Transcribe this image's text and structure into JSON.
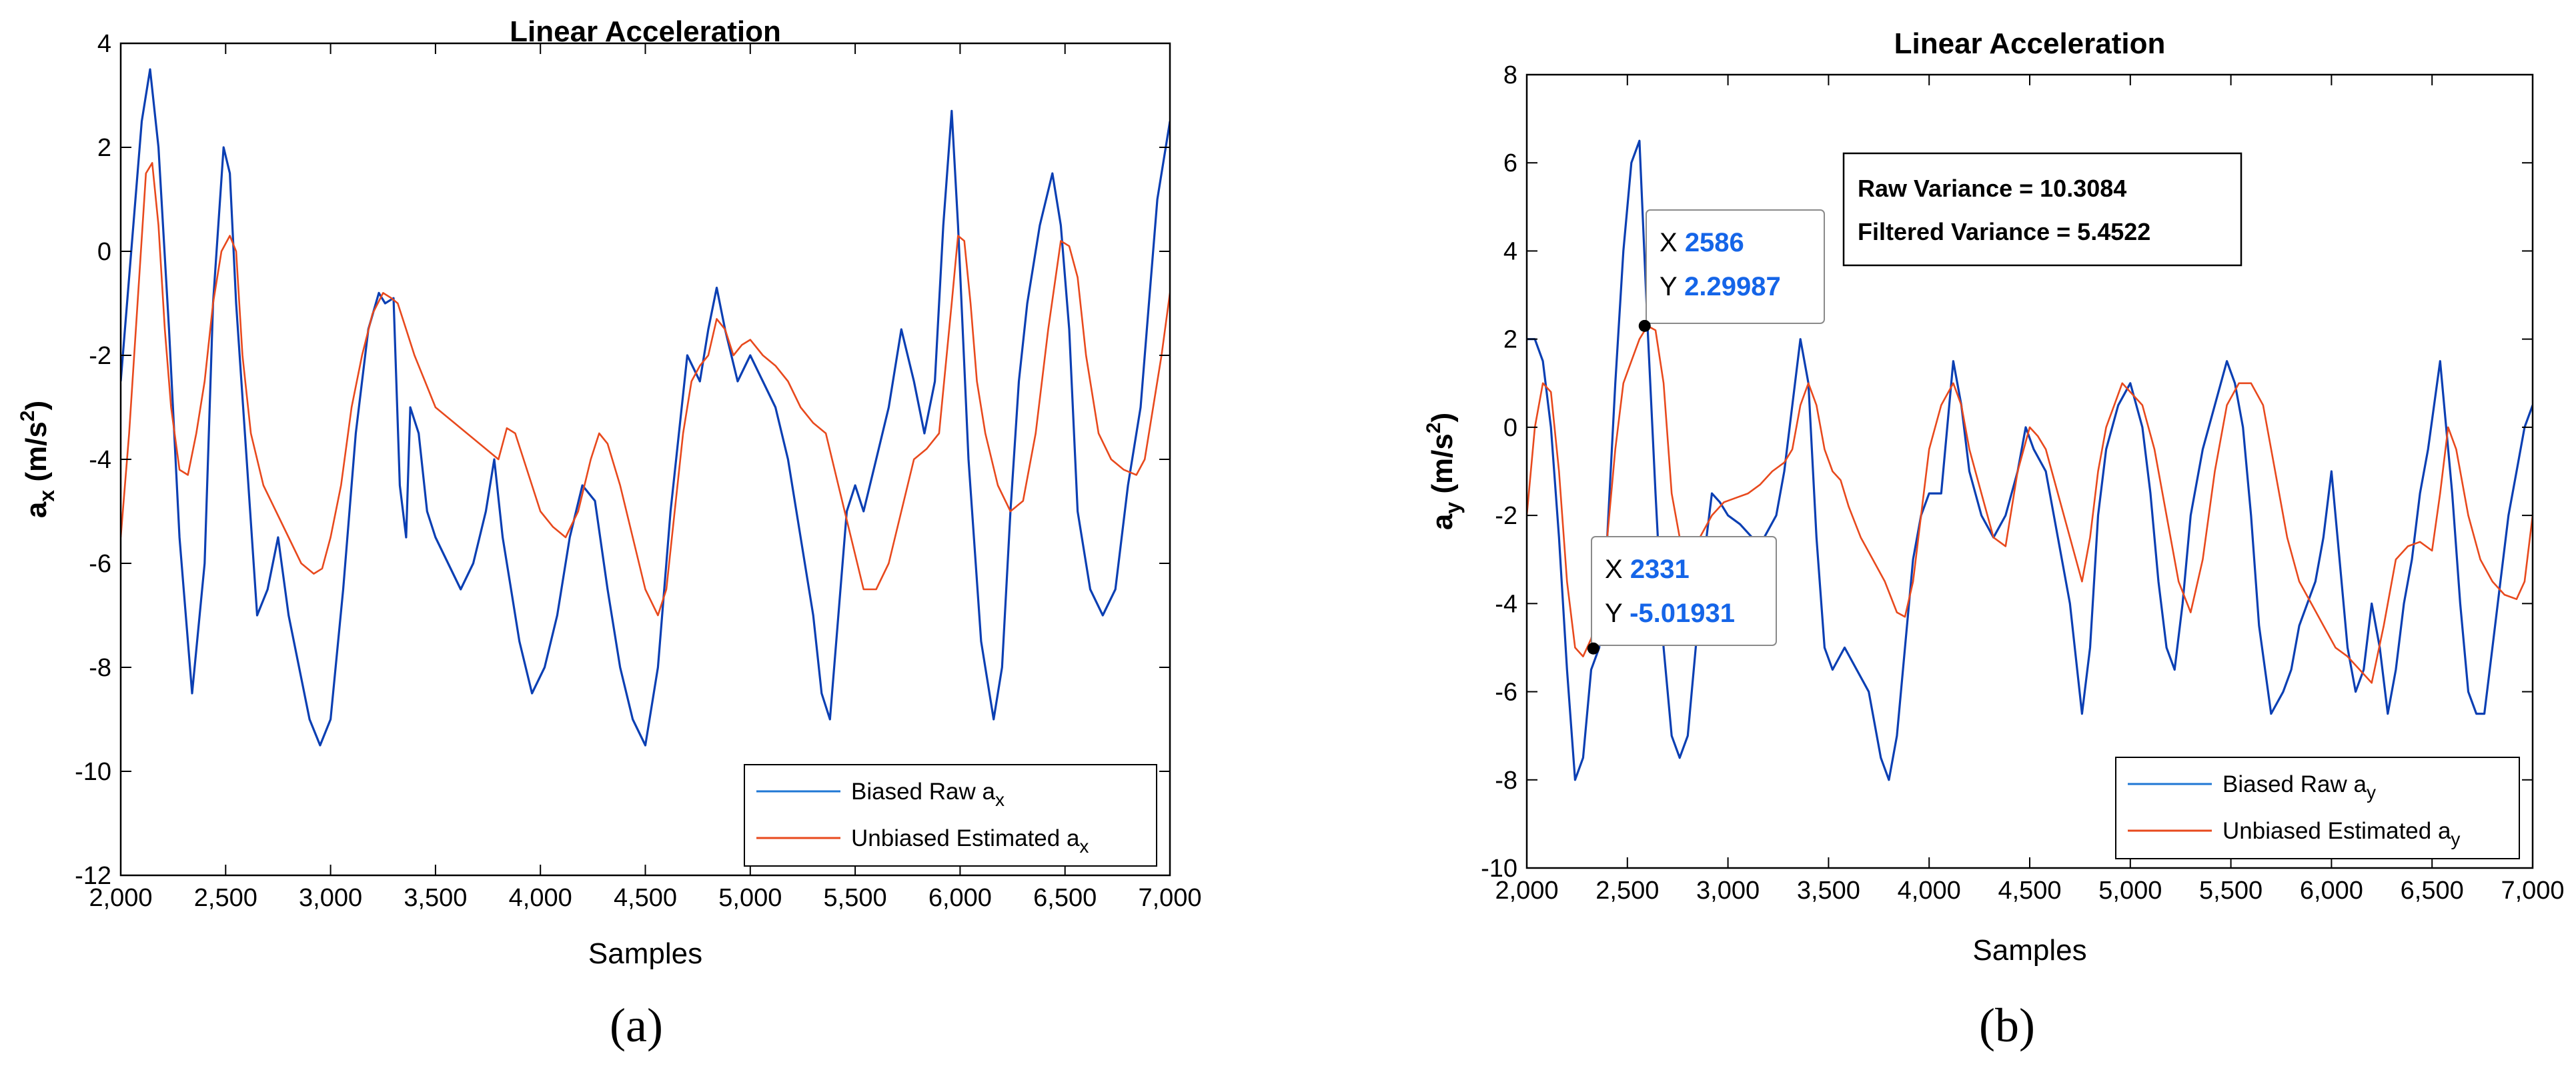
{
  "colors": {
    "raw": "#0b3fb3",
    "estimated": "#e8491d",
    "legend_raw": "#1f77d4",
    "tip_value": "#1565e8"
  },
  "chart_data": [
    {
      "type": "line",
      "panel_label": "(a)",
      "title": "Linear Acceleration",
      "xlabel": "Samples",
      "ylabel": {
        "base": "a",
        "sub": "x",
        "unit_pre": " (m/s",
        "unit_sup": "2",
        "unit_post": ")"
      },
      "xlim": [
        2000,
        7000
      ],
      "ylim": [
        -12,
        4
      ],
      "xticks": [
        2000,
        2500,
        3000,
        3500,
        4000,
        4500,
        5000,
        5500,
        6000,
        6500,
        7000
      ],
      "xtick_labels": [
        "2,000",
        "2,500",
        "3,000",
        "3,500",
        "4,000",
        "4,500",
        "5,000",
        "5,500",
        "6,000",
        "6,500",
        "7,000"
      ],
      "yticks": [
        -12,
        -10,
        -8,
        -6,
        -4,
        -2,
        0,
        2,
        4
      ],
      "ytick_labels": [
        "-12",
        "-10",
        "-8",
        "-6",
        "-4",
        "-2",
        "0",
        "2",
        "4"
      ],
      "legend": [
        {
          "text": "Biased Raw a",
          "sub": "x"
        },
        {
          "text": "Unbiased Estimated a",
          "sub": "x"
        }
      ],
      "legend_location": "bottom-right",
      "series": [
        {
          "name": "Biased Raw a_x",
          "x": [
            2000,
            2060,
            2100,
            2140,
            2180,
            2230,
            2280,
            2340,
            2400,
            2440,
            2490,
            2520,
            2550,
            2600,
            2650,
            2700,
            2750,
            2800,
            2850,
            2900,
            2950,
            3000,
            3060,
            3120,
            3180,
            3230,
            3260,
            3300,
            3330,
            3360,
            3380,
            3420,
            3460,
            3500,
            3560,
            3620,
            3680,
            3740,
            3780,
            3820,
            3860,
            3900,
            3960,
            4020,
            4080,
            4140,
            4200,
            4260,
            4320,
            4380,
            4440,
            4500,
            4560,
            4620,
            4700,
            4760,
            4800,
            4840,
            4880,
            4940,
            5000,
            5060,
            5120,
            5180,
            5240,
            5300,
            5340,
            5380,
            5420,
            5460,
            5500,
            5540,
            5600,
            5660,
            5720,
            5780,
            5830,
            5880,
            5920,
            5960,
            5990,
            6040,
            6100,
            6160,
            6200,
            6240,
            6280,
            6320,
            6380,
            6440,
            6480,
            6520,
            6560,
            6620,
            6680,
            6740,
            6800,
            6860,
            6900,
            6940,
            6980,
            7000
          ],
          "y": [
            -2.5,
            0.5,
            2.5,
            3.5,
            2.0,
            -1.5,
            -5.5,
            -8.5,
            -6.0,
            -1.0,
            2.0,
            1.5,
            -1.0,
            -4.0,
            -7.0,
            -6.5,
            -5.5,
            -7.0,
            -8.0,
            -9.0,
            -9.5,
            -9.0,
            -6.5,
            -3.5,
            -1.5,
            -0.8,
            -1.0,
            -0.9,
            -4.5,
            -5.5,
            -3.0,
            -3.5,
            -5.0,
            -5.5,
            -6.0,
            -6.5,
            -6.0,
            -5.0,
            -4.0,
            -5.5,
            -6.5,
            -7.5,
            -8.5,
            -8.0,
            -7.0,
            -5.5,
            -4.5,
            -4.8,
            -6.5,
            -8.0,
            -9.0,
            -9.5,
            -8.0,
            -5.0,
            -2.0,
            -2.5,
            -1.5,
            -0.7,
            -1.5,
            -2.5,
            -2.0,
            -2.5,
            -3.0,
            -4.0,
            -5.5,
            -7.0,
            -8.5,
            -9.0,
            -7.0,
            -5.0,
            -4.5,
            -5.0,
            -4.0,
            -3.0,
            -1.5,
            -2.5,
            -3.5,
            -2.5,
            0.5,
            2.7,
            0.5,
            -4.0,
            -7.5,
            -9.0,
            -8.0,
            -5.0,
            -2.5,
            -1.0,
            0.5,
            1.5,
            0.5,
            -1.5,
            -5.0,
            -6.5,
            -7.0,
            -6.5,
            -4.5,
            -3.0,
            -1.0,
            1.0,
            2.0,
            2.5
          ]
        },
        {
          "name": "Unbiased Estimated a_x",
          "x": [
            2000,
            2040,
            2080,
            2120,
            2150,
            2180,
            2210,
            2240,
            2280,
            2320,
            2360,
            2400,
            2440,
            2480,
            2520,
            2550,
            2580,
            2620,
            2680,
            2740,
            2800,
            2860,
            2920,
            2960,
            3000,
            3050,
            3100,
            3150,
            3200,
            3250,
            3290,
            3320,
            3360,
            3400,
            3450,
            3500,
            3560,
            3620,
            3680,
            3740,
            3800,
            3840,
            3880,
            3920,
            3960,
            4000,
            4060,
            4120,
            4180,
            4240,
            4280,
            4320,
            4380,
            4440,
            4500,
            4560,
            4600,
            4640,
            4680,
            4720,
            4760,
            4800,
            4840,
            4880,
            4920,
            4960,
            5000,
            5060,
            5120,
            5180,
            5240,
            5300,
            5360,
            5420,
            5480,
            5540,
            5600,
            5660,
            5720,
            5780,
            5840,
            5900,
            5960,
            5990,
            6020,
            6050,
            6080,
            6120,
            6180,
            6240,
            6300,
            6360,
            6420,
            6480,
            6520,
            6560,
            6600,
            6660,
            6720,
            6780,
            6840,
            6880,
            6920,
            6960,
            7000
          ],
          "y": [
            -5.5,
            -3.5,
            -1.0,
            1.5,
            1.7,
            0.5,
            -1.5,
            -3.0,
            -4.2,
            -4.3,
            -3.5,
            -2.5,
            -1.0,
            0.0,
            0.3,
            0.0,
            -2.0,
            -3.5,
            -4.5,
            -5.0,
            -5.5,
            -6.0,
            -6.2,
            -6.1,
            -5.5,
            -4.5,
            -3.0,
            -2.0,
            -1.2,
            -0.8,
            -0.9,
            -1.0,
            -1.5,
            -2.0,
            -2.5,
            -3.0,
            -3.2,
            -3.4,
            -3.6,
            -3.8,
            -4.0,
            -3.4,
            -3.5,
            -4.0,
            -4.5,
            -5.0,
            -5.3,
            -5.5,
            -5.0,
            -4.0,
            -3.5,
            -3.7,
            -4.5,
            -5.5,
            -6.5,
            -7.0,
            -6.5,
            -5.0,
            -3.5,
            -2.5,
            -2.2,
            -2.0,
            -1.3,
            -1.5,
            -2.0,
            -1.8,
            -1.7,
            -2.0,
            -2.2,
            -2.5,
            -3.0,
            -3.3,
            -3.5,
            -4.5,
            -5.5,
            -6.5,
            -6.5,
            -6.0,
            -5.0,
            -4.0,
            -3.8,
            -3.5,
            -1.0,
            0.3,
            0.2,
            -1.0,
            -2.5,
            -3.5,
            -4.5,
            -5.0,
            -4.8,
            -3.5,
            -1.5,
            0.2,
            0.1,
            -0.5,
            -2.0,
            -3.5,
            -4.0,
            -4.2,
            -4.3,
            -4.0,
            -3.0,
            -2.0,
            -0.8
          ]
        }
      ]
    },
    {
      "type": "line",
      "panel_label": "(b)",
      "title": "Linear Acceleration",
      "xlabel": "Samples",
      "ylabel": {
        "base": "a",
        "sub": "y",
        "unit_pre": " (m/s",
        "unit_sup": "2",
        "unit_post": ")"
      },
      "xlim": [
        2000,
        7000
      ],
      "ylim": [
        -10,
        8
      ],
      "xticks": [
        2000,
        2500,
        3000,
        3500,
        4000,
        4500,
        5000,
        5500,
        6000,
        6500,
        7000
      ],
      "xtick_labels": [
        "2,000",
        "2,500",
        "3,000",
        "3,500",
        "4,000",
        "4,500",
        "5,000",
        "5,500",
        "6,000",
        "6,500",
        "7,000"
      ],
      "yticks": [
        -10,
        -8,
        -6,
        -4,
        -2,
        0,
        2,
        4,
        6,
        8
      ],
      "ytick_labels": [
        "-10",
        "-8",
        "-6",
        "-4",
        "-2",
        "0",
        "2",
        "4",
        "6",
        "8"
      ],
      "legend": [
        {
          "text": "Biased Raw a",
          "sub": "y"
        },
        {
          "text": "Unbiased Estimated a",
          "sub": "y"
        }
      ],
      "legend_location": "bottom-right",
      "annotation": {
        "line1": "Raw Variance = 10.3084",
        "line2": "Filtered Variance = 5.4522"
      },
      "datatips": [
        {
          "x_label": "X",
          "x_value": "2586",
          "y_label": "Y",
          "y_value": "2.29987",
          "x": 2586,
          "y": 2.29987
        },
        {
          "x_label": "X",
          "x_value": "2331",
          "y_label": "Y",
          "y_value": "-5.01931",
          "x": 2331,
          "y": -5.01931
        }
      ],
      "series": [
        {
          "name": "Biased Raw a_y",
          "x": [
            2000,
            2040,
            2080,
            2120,
            2160,
            2200,
            2240,
            2280,
            2320,
            2360,
            2400,
            2440,
            2480,
            2520,
            2560,
            2600,
            2640,
            2680,
            2720,
            2760,
            2800,
            2840,
            2880,
            2920,
            2960,
            3000,
            3060,
            3120,
            3180,
            3240,
            3280,
            3320,
            3360,
            3400,
            3440,
            3480,
            3520,
            3580,
            3640,
            3700,
            3760,
            3800,
            3840,
            3880,
            3920,
            3960,
            4000,
            4060,
            4120,
            4160,
            4200,
            4260,
            4320,
            4380,
            4440,
            4480,
            4520,
            4580,
            4640,
            4700,
            4760,
            4800,
            4840,
            4880,
            4940,
            5000,
            5060,
            5100,
            5140,
            5180,
            5220,
            5260,
            5300,
            5360,
            5420,
            5480,
            5520,
            5560,
            5600,
            5640,
            5700,
            5760,
            5800,
            5840,
            5880,
            5920,
            5960,
            6000,
            6040,
            6080,
            6120,
            6160,
            6200,
            6240,
            6280,
            6320,
            6360,
            6400,
            6440,
            6480,
            6540,
            6600,
            6640,
            6680,
            6720,
            6760,
            6800,
            6840,
            6880,
            6920,
            6960,
            7000
          ],
          "y": [
            2.0,
            2.0,
            1.5,
            0.0,
            -2.5,
            -5.5,
            -8.0,
            -7.5,
            -5.5,
            -5.0,
            -2.5,
            1.0,
            4.0,
            6.0,
            6.5,
            2.3,
            -1.5,
            -5.0,
            -7.0,
            -7.5,
            -7.0,
            -5.0,
            -3.0,
            -1.5,
            -1.7,
            -2.0,
            -2.2,
            -2.5,
            -2.5,
            -2.0,
            -1.0,
            0.5,
            2.0,
            1.0,
            -2.5,
            -5.0,
            -5.5,
            -5.0,
            -5.5,
            -6.0,
            -7.5,
            -8.0,
            -7.0,
            -5.0,
            -3.0,
            -2.0,
            -1.5,
            -1.5,
            1.5,
            0.5,
            -1.0,
            -2.0,
            -2.5,
            -2.0,
            -1.0,
            0.0,
            -0.5,
            -1.0,
            -2.5,
            -4.0,
            -6.5,
            -5.0,
            -2.0,
            -0.5,
            0.5,
            1.0,
            0.0,
            -1.5,
            -3.5,
            -5.0,
            -5.5,
            -4.0,
            -2.0,
            -0.5,
            0.5,
            1.5,
            1.0,
            0.0,
            -2.0,
            -4.5,
            -6.5,
            -6.0,
            -5.5,
            -4.5,
            -4.0,
            -3.5,
            -2.5,
            -1.0,
            -3.0,
            -5.0,
            -6.0,
            -5.5,
            -4.0,
            -5.0,
            -6.5,
            -5.5,
            -4.0,
            -3.0,
            -1.5,
            -0.5,
            1.5,
            -1.5,
            -4.0,
            -6.0,
            -6.5,
            -6.5,
            -5.0,
            -3.5,
            -2.0,
            -1.0,
            0.0,
            0.5
          ]
        },
        {
          "name": "Unbiased Estimated a_y",
          "x": [
            2000,
            2040,
            2080,
            2120,
            2160,
            2200,
            2240,
            2280,
            2320,
            2360,
            2400,
            2440,
            2480,
            2520,
            2560,
            2600,
            2640,
            2680,
            2720,
            2760,
            2800,
            2860,
            2920,
            2980,
            3040,
            3100,
            3160,
            3220,
            3280,
            3320,
            3360,
            3400,
            3440,
            3480,
            3520,
            3560,
            3600,
            3660,
            3720,
            3780,
            3840,
            3880,
            3920,
            3960,
            4000,
            4060,
            4120,
            4160,
            4200,
            4260,
            4320,
            4380,
            4440,
            4500,
            4540,
            4580,
            4640,
            4700,
            4760,
            4800,
            4840,
            4880,
            4920,
            4960,
            5000,
            5060,
            5120,
            5180,
            5240,
            5300,
            5360,
            5420,
            5480,
            5540,
            5600,
            5660,
            5720,
            5780,
            5840,
            5900,
            5960,
            6020,
            6080,
            6140,
            6200,
            6260,
            6320,
            6380,
            6440,
            6500,
            6540,
            6580,
            6620,
            6680,
            6740,
            6800,
            6860,
            6920,
            6960,
            7000
          ],
          "y": [
            -2.0,
            0.0,
            1.0,
            0.8,
            -1.0,
            -3.5,
            -5.0,
            -5.2,
            -4.8,
            -4.0,
            -2.5,
            -0.5,
            1.0,
            1.5,
            2.0,
            2.3,
            2.2,
            1.0,
            -1.5,
            -2.5,
            -2.8,
            -2.5,
            -2.0,
            -1.7,
            -1.6,
            -1.5,
            -1.3,
            -1.0,
            -0.8,
            -0.5,
            0.5,
            1.0,
            0.5,
            -0.5,
            -1.0,
            -1.2,
            -1.8,
            -2.5,
            -3.0,
            -3.5,
            -4.2,
            -4.3,
            -3.5,
            -2.0,
            -0.5,
            0.5,
            1.0,
            0.5,
            -0.5,
            -1.5,
            -2.5,
            -2.7,
            -1.0,
            0.0,
            -0.2,
            -0.5,
            -1.5,
            -2.5,
            -3.5,
            -2.5,
            -1.0,
            0.0,
            0.5,
            1.0,
            0.8,
            0.5,
            -0.5,
            -2.0,
            -3.5,
            -4.2,
            -3.0,
            -1.0,
            0.5,
            1.0,
            1.0,
            0.5,
            -1.0,
            -2.5,
            -3.5,
            -4.0,
            -4.5,
            -5.0,
            -5.2,
            -5.5,
            -5.8,
            -4.5,
            -3.0,
            -2.7,
            -2.6,
            -2.8,
            -1.5,
            0.0,
            -0.5,
            -2.0,
            -3.0,
            -3.5,
            -3.8,
            -3.9,
            -3.5,
            -2.0
          ]
        }
      ]
    }
  ]
}
